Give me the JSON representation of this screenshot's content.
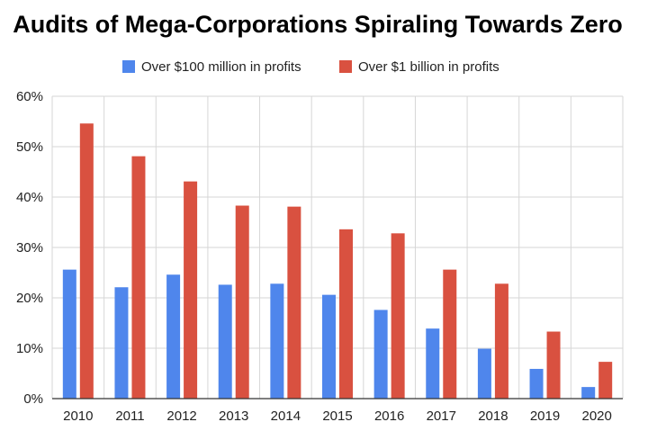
{
  "chart_data": {
    "type": "bar",
    "title": "Audits of Mega-Corporations Spiraling Towards Zero",
    "xlabel": "",
    "ylabel": "",
    "categories": [
      "2010",
      "2011",
      "2012",
      "2013",
      "2014",
      "2015",
      "2016",
      "2017",
      "2018",
      "2019",
      "2020"
    ],
    "series": [
      {
        "name": "Over $100 million in profits",
        "color": "#4f86ec",
        "values": [
          25.6,
          22.1,
          24.6,
          22.6,
          22.8,
          20.6,
          17.6,
          13.9,
          9.9,
          5.9,
          2.3
        ]
      },
      {
        "name": "Over $1 billion in profits",
        "color": "#d95140",
        "values": [
          54.6,
          48.1,
          43.1,
          38.3,
          38.1,
          33.6,
          32.8,
          25.6,
          22.8,
          13.3,
          7.3
        ]
      }
    ],
    "ylim": [
      0,
      60
    ],
    "yticks": [
      "0%",
      "10%",
      "20%",
      "30%",
      "40%",
      "50%",
      "60%"
    ],
    "grid": true,
    "legend_position": "top-center"
  }
}
